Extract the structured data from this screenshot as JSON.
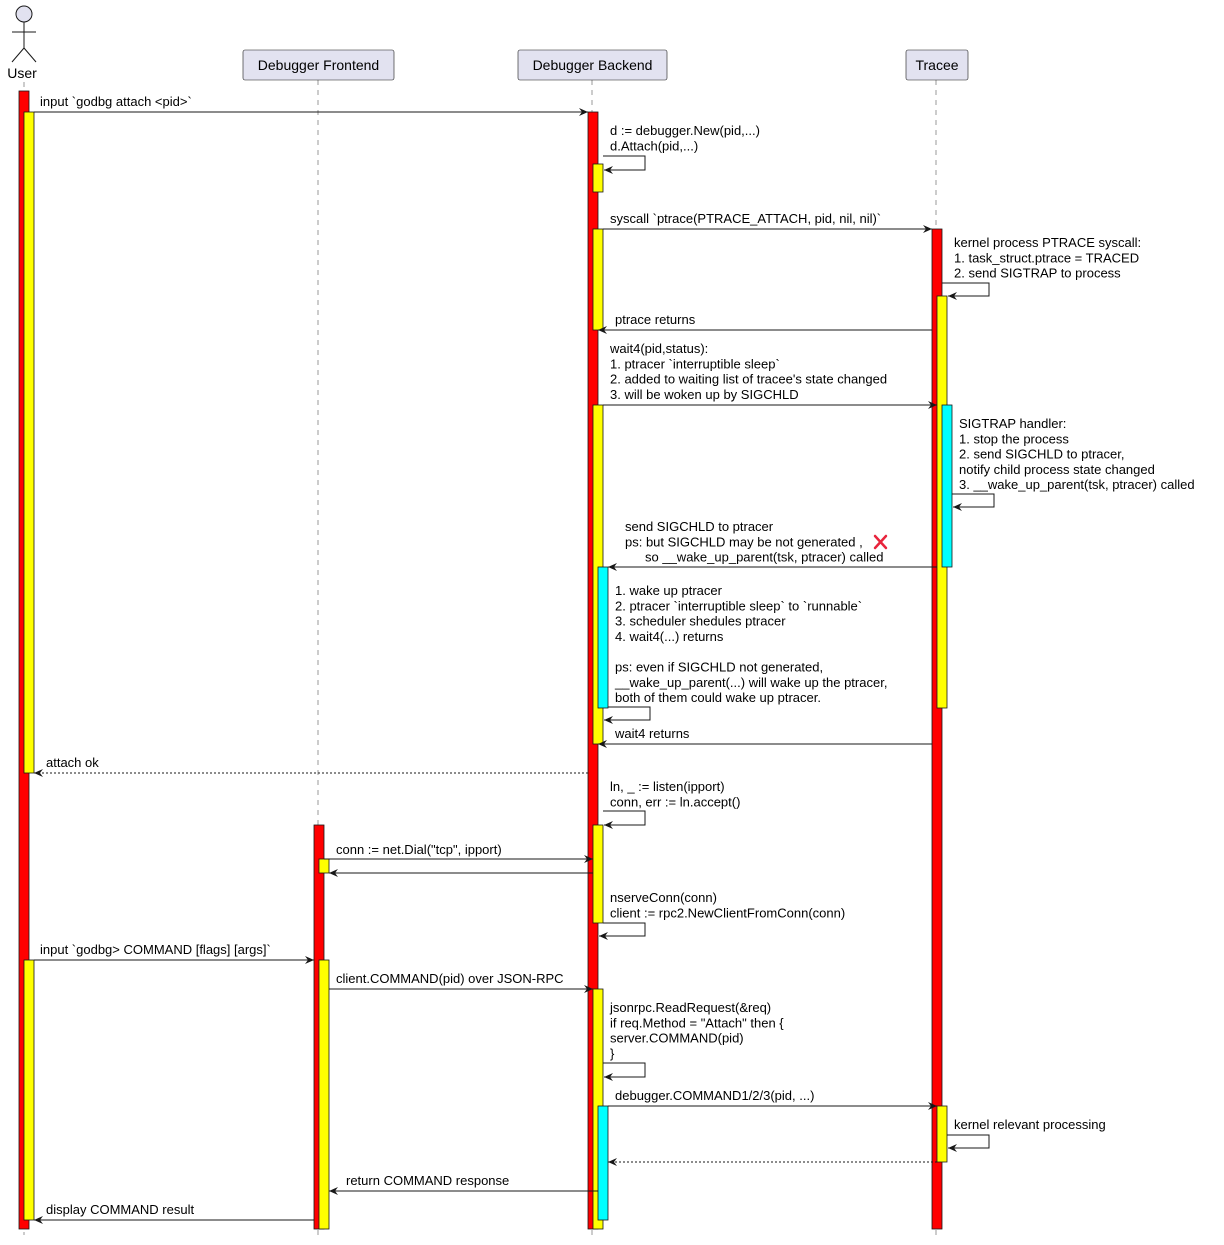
{
  "participants": {
    "user": "User",
    "frontend": "Debugger Frontend",
    "backend": "Debugger Backend",
    "tracee": "Tracee"
  },
  "colors": {
    "activation_main": "#FF0000",
    "activation_nested": "#FFFF00",
    "activation_signal": "#00FFFF",
    "cross_mark": "#E8243C"
  },
  "messages": [
    {
      "lines": [
        "input `godbg attach <pid>`"
      ]
    },
    {
      "lines": [
        "d := debugger.New(pid,...)",
        "d.Attach(pid,...)"
      ]
    },
    {
      "lines": [
        "syscall `ptrace(PTRACE_ATTACH, pid, nil, nil)`"
      ]
    },
    {
      "lines": [
        "kernel process PTRACE syscall:",
        "1. task_struct.ptrace = TRACED",
        "2. send SIGTRAP to process"
      ]
    },
    {
      "lines": [
        "ptrace returns"
      ]
    },
    {
      "lines": [
        "wait4(pid,status):",
        "1. ptracer `interruptible sleep`",
        "2. added to waiting list of tracee's state changed",
        "3. will be woken up by SIGCHLD"
      ]
    },
    {
      "lines": [
        "SIGTRAP handler:",
        "1. stop the process",
        "2. send SIGCHLD to ptracer,",
        "    notify child process state changed",
        "3. __wake_up_parent(tsk, ptracer) called"
      ]
    },
    {
      "lines": [
        "send SIGCHLD to ptracer",
        "ps: but SIGCHLD may be not generated   ,",
        "so __wake_up_parent(tsk, ptracer) called"
      ]
    },
    {
      "lines": [
        "1. wake up ptracer",
        "2. ptracer `interruptible sleep` to `runnable`",
        "3. scheduler shedules ptracer",
        "4. wait4(...) returns",
        "",
        "ps: even if SIGCHLD not generated,",
        "__wake_up_parent(...) will wake up the ptracer,",
        " both of them could wake up ptracer."
      ]
    },
    {
      "lines": [
        "wait4 returns"
      ]
    },
    {
      "lines": [
        "attach ok"
      ]
    },
    {
      "lines": [
        "ln, _ := listen(ipport)",
        "conn, err := ln.accept()"
      ]
    },
    {
      "lines": [
        "conn := net.Dial(\"tcp\", ipport)"
      ]
    },
    {
      "lines": []
    },
    {
      "lines": [
        "nserveConn(conn)",
        "client := rpc2.NewClientFromConn(conn)"
      ]
    },
    {
      "lines": [
        "input `godbg> COMMAND [flags] [args]`"
      ]
    },
    {
      "lines": [
        "client.COMMAND(pid) over JSON-RPC"
      ]
    },
    {
      "lines": [
        "jsonrpc.ReadRequest(&req)",
        "if req.Method = \"Attach\" then {",
        "    server.COMMAND(pid)",
        "}"
      ]
    },
    {
      "lines": [
        "debugger.COMMAND1/2/3(pid, ...)"
      ]
    },
    {
      "lines": [
        "kernel relevant processing"
      ]
    },
    {
      "lines": []
    },
    {
      "lines": [
        "return COMMAND response"
      ]
    },
    {
      "lines": [
        "display COMMAND result"
      ]
    }
  ]
}
